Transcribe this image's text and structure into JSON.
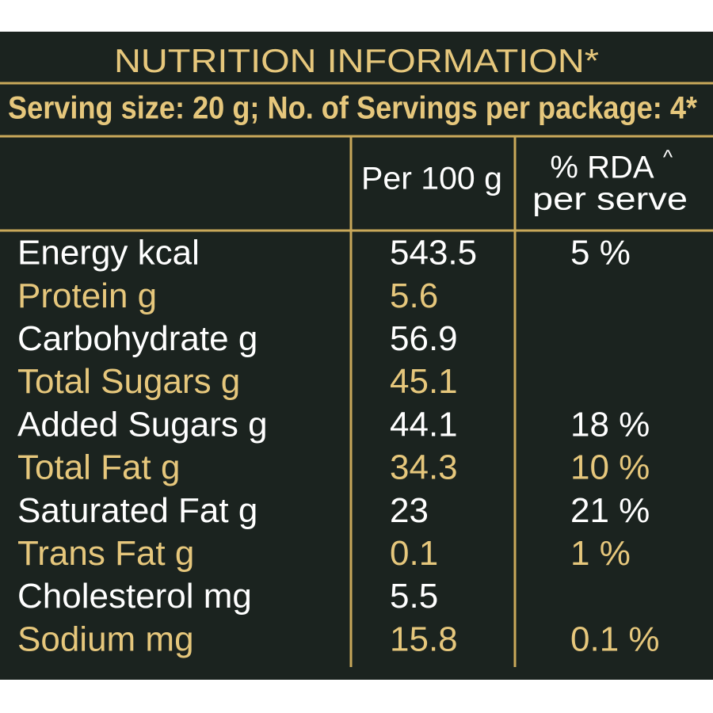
{
  "header": {
    "title": "NUTRITION INFORMATION*",
    "serving": "Serving size: 20 g; No. of Servings per package: 4*"
  },
  "table": {
    "columns": {
      "per_100g": "Per 100 g",
      "rda_line1": "% RDA",
      "rda_mark": "^",
      "rda_line2": "per serve"
    },
    "rows": [
      [
        "Energy kcal",
        "543.5",
        "5 %"
      ],
      [
        "Protein g",
        "5.6",
        null
      ],
      [
        "Carbohydrate g",
        "56.9",
        null
      ],
      [
        "Total Sugars g",
        "45.1",
        null
      ],
      [
        "Added Sugars g",
        "44.1",
        "18 %"
      ],
      [
        "Total Fat g",
        "34.3",
        "10 %"
      ],
      [
        "Saturated Fat g",
        "23",
        "21 %"
      ],
      [
        "Trans Fat g",
        "0.1",
        "1 %"
      ],
      [
        "Cholesterol mg",
        "5.5",
        null
      ],
      [
        "Sodium mg",
        "15.8",
        "0.1 %"
      ]
    ]
  }
}
